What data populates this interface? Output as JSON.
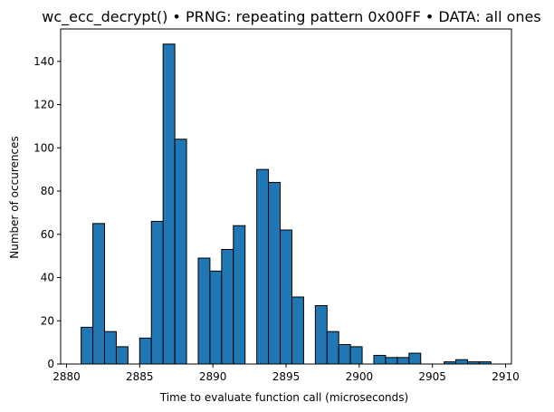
{
  "chart_data": {
    "type": "bar",
    "title": "wc_ecc_decrypt() • PRNG: repeating pattern 0x00FF • DATA: all ones",
    "xlabel": "Time to evaluate function call (microseconds)",
    "ylabel": "Number of occurences",
    "xlim": [
      2879.6,
      2910.4
    ],
    "ylim": [
      0,
      155
    ],
    "xticks": [
      2880,
      2885,
      2890,
      2895,
      2900,
      2905,
      2910
    ],
    "yticks": [
      0,
      20,
      40,
      60,
      80,
      100,
      120,
      140
    ],
    "bin_width": 0.8,
    "bar_color": "#1f77b4",
    "edge_color": "#000000",
    "grid": false,
    "bins": [
      {
        "x0": 2881.0,
        "count": 17
      },
      {
        "x0": 2881.8,
        "count": 65
      },
      {
        "x0": 2882.6,
        "count": 15
      },
      {
        "x0": 2883.4,
        "count": 8
      },
      {
        "x0": 2884.2,
        "count": 0
      },
      {
        "x0": 2885.0,
        "count": 12
      },
      {
        "x0": 2885.8,
        "count": 66
      },
      {
        "x0": 2886.6,
        "count": 148
      },
      {
        "x0": 2887.4,
        "count": 104
      },
      {
        "x0": 2888.2,
        "count": 0
      },
      {
        "x0": 2889.0,
        "count": 49
      },
      {
        "x0": 2889.8,
        "count": 43
      },
      {
        "x0": 2890.6,
        "count": 53
      },
      {
        "x0": 2891.4,
        "count": 64
      },
      {
        "x0": 2892.2,
        "count": 0
      },
      {
        "x0": 2893.0,
        "count": 90
      },
      {
        "x0": 2893.8,
        "count": 84
      },
      {
        "x0": 2894.6,
        "count": 62
      },
      {
        "x0": 2895.4,
        "count": 31
      },
      {
        "x0": 2896.2,
        "count": 0
      },
      {
        "x0": 2897.0,
        "count": 27
      },
      {
        "x0": 2897.8,
        "count": 15
      },
      {
        "x0": 2898.6,
        "count": 9
      },
      {
        "x0": 2899.4,
        "count": 8
      },
      {
        "x0": 2900.2,
        "count": 0
      },
      {
        "x0": 2901.0,
        "count": 4
      },
      {
        "x0": 2901.8,
        "count": 3
      },
      {
        "x0": 2902.6,
        "count": 3
      },
      {
        "x0": 2903.4,
        "count": 5
      },
      {
        "x0": 2904.2,
        "count": 0
      },
      {
        "x0": 2905.0,
        "count": 0
      },
      {
        "x0": 2905.8,
        "count": 1
      },
      {
        "x0": 2906.6,
        "count": 2
      },
      {
        "x0": 2907.4,
        "count": 1
      },
      {
        "x0": 2908.2,
        "count": 1
      }
    ]
  }
}
